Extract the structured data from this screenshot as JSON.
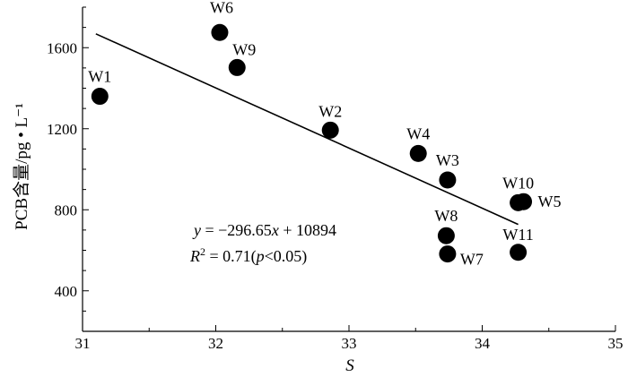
{
  "chart_data": {
    "type": "scatter",
    "xlabel": "S",
    "ylabel": "PCB含量/pg • L⁻¹",
    "xlim": [
      31,
      35
    ],
    "ylim": [
      200,
      1800
    ],
    "xticks": [
      31,
      32,
      33,
      34,
      35
    ],
    "yticks": [
      400,
      800,
      1200,
      1600
    ],
    "points": [
      {
        "label": "W1",
        "x": 31.13,
        "y": 1360
      },
      {
        "label": "W6",
        "x": 32.03,
        "y": 1675
      },
      {
        "label": "W9",
        "x": 32.16,
        "y": 1502
      },
      {
        "label": "W2",
        "x": 32.86,
        "y": 1193
      },
      {
        "label": "W4",
        "x": 33.52,
        "y": 1078
      },
      {
        "label": "W3",
        "x": 33.74,
        "y": 947
      },
      {
        "label": "W8",
        "x": 33.73,
        "y": 672
      },
      {
        "label": "W7",
        "x": 33.74,
        "y": 582
      },
      {
        "label": "W10",
        "x": 34.27,
        "y": 835
      },
      {
        "label": "W5",
        "x": 34.31,
        "y": 840
      },
      {
        "label": "W11",
        "x": 34.27,
        "y": 590
      }
    ],
    "regression": {
      "slope": -296.65,
      "intercept": 10894,
      "x_range": [
        31.1,
        34.27
      ],
      "equation_y": "y",
      "equation_rest": " = −296.65",
      "equation_x": "x",
      "equation_tail": " + 10894",
      "r2_R": "R",
      "r2_sup": "2",
      "r2_mid": " = 0.71(",
      "r2_p": "p",
      "r2_end": "<0.05)"
    }
  }
}
